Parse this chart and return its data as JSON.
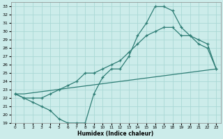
{
  "xlabel": "Humidex (Indice chaleur)",
  "background_color": "#ccecea",
  "grid_color": "#aad8d5",
  "line_color": "#2e7d75",
  "xlim": [
    -0.5,
    23.5
  ],
  "ylim": [
    19,
    33.5
  ],
  "xticks": [
    0,
    1,
    2,
    3,
    4,
    5,
    6,
    7,
    8,
    9,
    10,
    11,
    12,
    13,
    14,
    15,
    16,
    17,
    18,
    19,
    20,
    21,
    22,
    23
  ],
  "yticks": [
    19,
    20,
    21,
    22,
    23,
    24,
    25,
    26,
    27,
    28,
    29,
    30,
    31,
    32,
    33
  ],
  "curve1_x": [
    0,
    1,
    2,
    3,
    4,
    5,
    6,
    7,
    8,
    9,
    10,
    11,
    12,
    13,
    14,
    15,
    16,
    17,
    18,
    19,
    20,
    21,
    22,
    23
  ],
  "curve1_y": [
    22.5,
    22.0,
    21.5,
    21.0,
    20.5,
    19.5,
    19.0,
    19.0,
    19.0,
    22.5,
    24.5,
    25.5,
    25.5,
    27.0,
    29.5,
    31.0,
    33.0,
    33.0,
    32.5,
    30.5,
    29.5,
    28.5,
    28.0,
    25.5
  ],
  "curve2_x": [
    0,
    1,
    2,
    3,
    4,
    5,
    6,
    7,
    8,
    9,
    10,
    11,
    12,
    13,
    14,
    15,
    16,
    17,
    18,
    19,
    20,
    21,
    22,
    23
  ],
  "curve2_y": [
    22.5,
    22.0,
    22.0,
    22.0,
    22.5,
    23.0,
    23.5,
    24.0,
    25.0,
    25.0,
    25.5,
    26.0,
    26.5,
    27.5,
    28.5,
    29.5,
    30.0,
    30.5,
    30.5,
    29.5,
    29.5,
    29.0,
    28.5,
    25.5
  ],
  "curve3_x": [
    0,
    1,
    23
  ],
  "curve3_y": [
    22.5,
    22.5,
    25.5
  ],
  "marker_style": "+"
}
